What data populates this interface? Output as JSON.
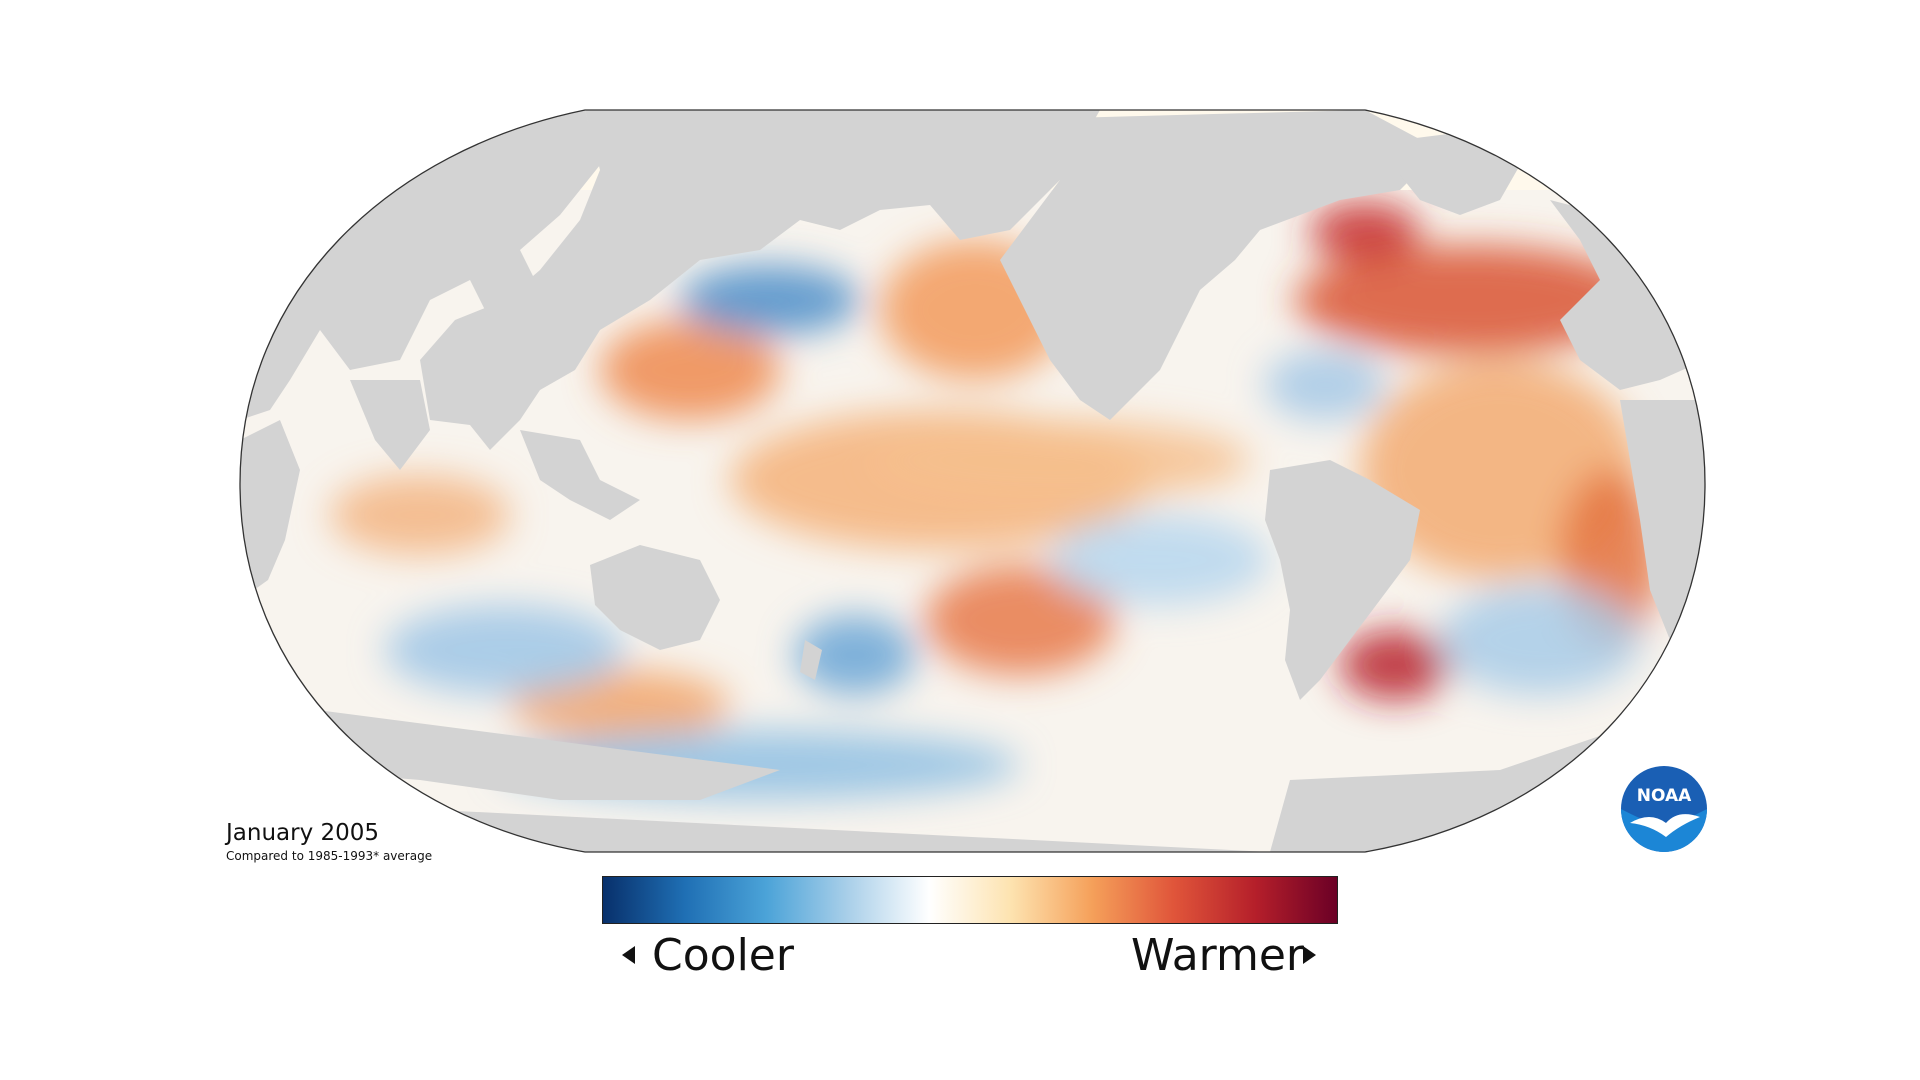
{
  "caption": {
    "title": "January 2005",
    "subtitle": "Compared to 1985-1993* average"
  },
  "legend": {
    "left_label": "Cooler",
    "right_label": "Warmer",
    "gradient_colors": [
      "#08306b",
      "#1f6fb4",
      "#4ba3d8",
      "#a9cfe9",
      "#ffffff",
      "#fde3b0",
      "#f5a05a",
      "#e0553a",
      "#b51f2a",
      "#6b0026"
    ]
  },
  "logo": {
    "name": "noaa-logo",
    "text": "NOAA"
  },
  "colors": {
    "land": "#d3d3d3",
    "arctic_ice": "#fff9ec",
    "ocean_neutral": "#f8f4ee",
    "outline": "#333333"
  },
  "anomaly_regions": [
    {
      "label": "north-pacific-warm",
      "color": "#f29a5c"
    },
    {
      "label": "central-pacific-warm",
      "color": "#f4b27a"
    },
    {
      "label": "south-pacific-warm",
      "color": "#e7794a"
    },
    {
      "label": "north-atlantic-warm",
      "color": "#d95433"
    },
    {
      "label": "labrador-sea-warm",
      "color": "#c62b2b"
    },
    {
      "label": "south-atlantic-warm",
      "color": "#f2aa72"
    },
    {
      "label": "argentine-basin-warm",
      "color": "#b71c2c"
    },
    {
      "label": "indian-ocean-cool",
      "color": "#9dc6e6"
    },
    {
      "label": "southern-ocean-cool",
      "color": "#8fbfe3"
    },
    {
      "label": "tasman-cool",
      "color": "#6aa6d6"
    },
    {
      "label": "east-pacific-cool",
      "color": "#b6d6ee"
    },
    {
      "label": "kuroshio-cool",
      "color": "#4d8ec9"
    }
  ]
}
